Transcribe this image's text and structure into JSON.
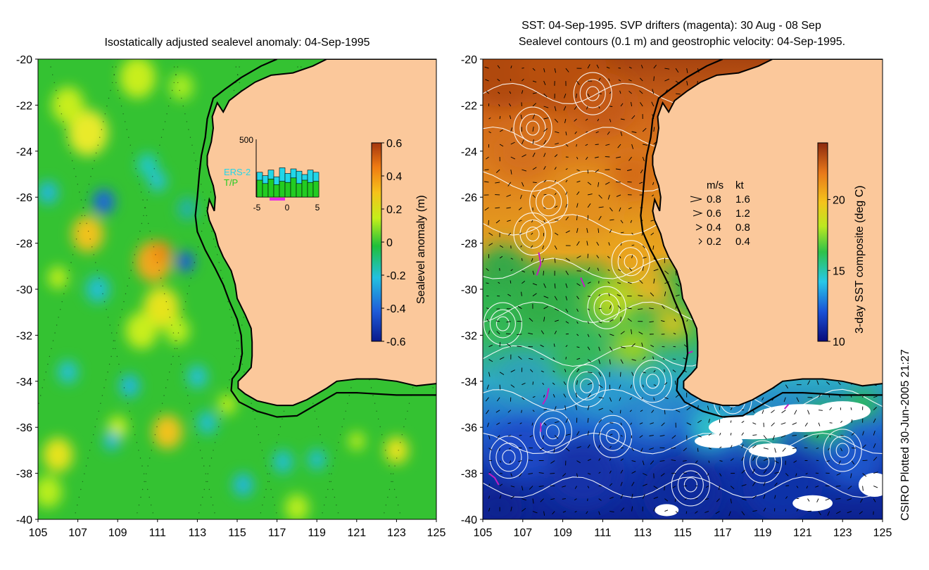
{
  "left_panel": {
    "title": "Isostatically adjusted sealevel anomaly: 04-Sep-1995",
    "colorbar": {
      "label": "Sealevel anomaly (m)",
      "ticks": [
        "0.6",
        "0.4",
        "0.2",
        "0",
        "-0.2",
        "-0.4",
        "-0.6"
      ],
      "range": [
        -0.6,
        0.6
      ],
      "colors": [
        "#0b1a8c",
        "#1f5bd8",
        "#22c0e0",
        "#1fbf3a",
        "#c4ef1a",
        "#f6c21a",
        "#ef7a12",
        "#a4360e"
      ]
    },
    "inset": {
      "ytick": "500",
      "xticks": [
        "-5",
        "0",
        "5"
      ],
      "legend": [
        "ERS-2",
        "T/P"
      ],
      "legend_colors": [
        "#22d6e8",
        "#22cc22"
      ],
      "ers2": [
        220,
        190,
        240,
        180,
        260,
        210,
        250,
        230,
        200,
        240,
        220
      ],
      "tp": [
        150,
        120,
        160,
        110,
        140,
        130,
        170,
        120,
        150,
        130,
        140
      ]
    }
  },
  "right_panel": {
    "title_line1": "SST: 04-Sep-1995. SVP drifters (magenta): 30 Aug - 08 Sep",
    "title_line2": "Sealevel contours (0.1 m) and geostrophic velocity: 04-Sep-1995.",
    "colorbar": {
      "label": "3-day SST composite (deg C)",
      "ticks": [
        "20",
        "15",
        "10"
      ],
      "tick_values": [
        20,
        15,
        10
      ],
      "range": [
        10,
        24
      ],
      "colors": [
        "#0a0a7a",
        "#1a52d6",
        "#28c8e8",
        "#2ec24a",
        "#bce821",
        "#f5c41b",
        "#e8781a",
        "#8c2a0e"
      ]
    },
    "velocity_legend": {
      "header": [
        "m/s",
        "kt"
      ],
      "rows": [
        [
          "0.8",
          "1.6"
        ],
        [
          "0.6",
          "1.2"
        ],
        [
          "0.4",
          "0.8"
        ],
        [
          "0.2",
          "0.4"
        ]
      ]
    }
  },
  "axes": {
    "xticks": [
      "105",
      "107",
      "109",
      "111",
      "113",
      "115",
      "117",
      "119",
      "121",
      "123",
      "125"
    ],
    "yticks": [
      "-20",
      "-22",
      "-24",
      "-26",
      "-28",
      "-30",
      "-32",
      "-34",
      "-36",
      "-38",
      "-40"
    ],
    "lon_range": [
      105,
      125
    ],
    "lat_range": [
      -40,
      -20
    ]
  },
  "land_color": "#fbc89b",
  "credit": "CSIRO Plotted 30-Jun-2005 21:27"
}
